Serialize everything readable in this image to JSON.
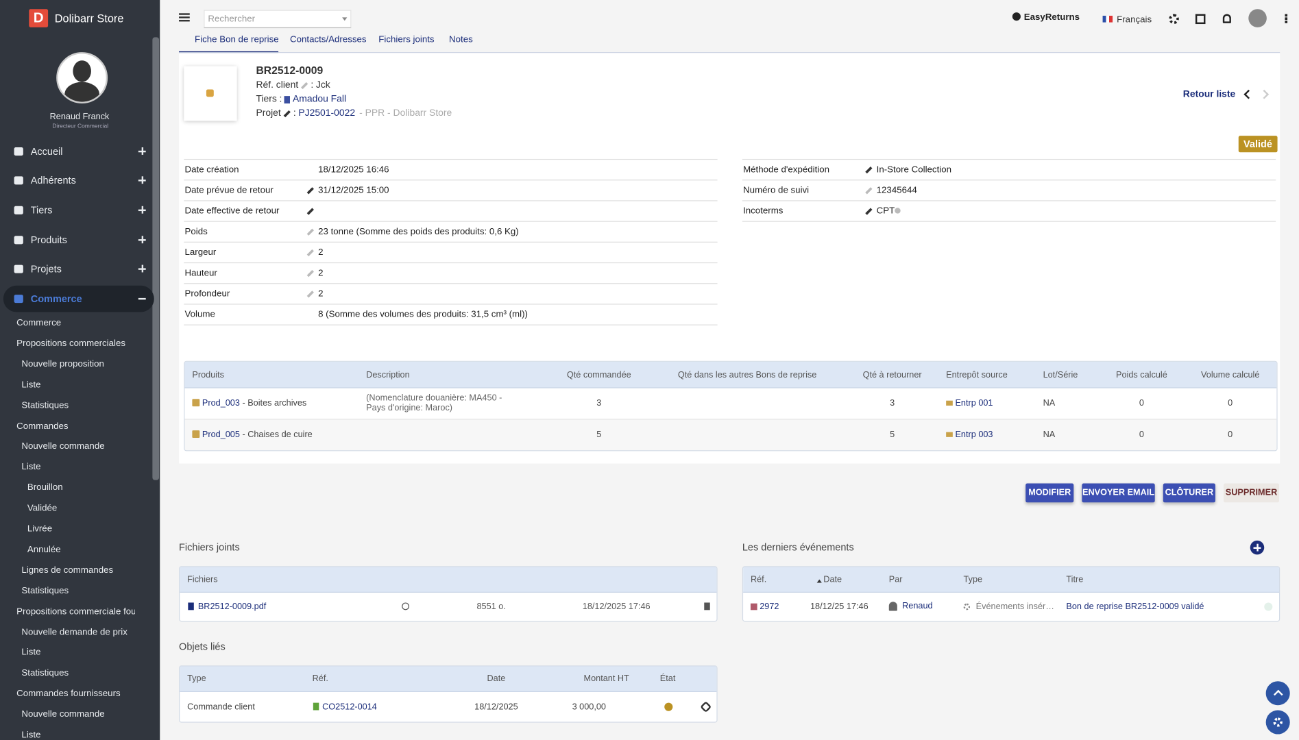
{
  "app": {
    "logo": "D",
    "name": "Dolibarr Store"
  },
  "user": {
    "name": "Renaud Franck",
    "role": "Directeur Commercial"
  },
  "menu": [
    "Accueil",
    "Adhérents",
    "Tiers",
    "Produits",
    "Projets",
    "Commerce"
  ],
  "submenu": [
    {
      "label": "Commerce"
    },
    {
      "label": "Propositions commerciales",
      "items": [
        {
          "label": "Nouvelle proposition"
        },
        {
          "label": "Liste"
        },
        {
          "label": "Statistiques"
        }
      ]
    },
    {
      "label": "Commandes",
      "items": [
        {
          "label": "Nouvelle commande"
        },
        {
          "label": "Liste",
          "items": [
            {
              "label": "Brouillon"
            },
            {
              "label": "Validée"
            },
            {
              "label": "Livrée"
            },
            {
              "label": "Annulée"
            }
          ]
        },
        {
          "label": "Lignes de commandes"
        },
        {
          "label": "Statistiques"
        }
      ]
    },
    {
      "label": "Propositions commerciale fourni...",
      "items": [
        {
          "label": "Nouvelle demande de prix"
        },
        {
          "label": "Liste"
        },
        {
          "label": "Statistiques"
        }
      ]
    },
    {
      "label": "Commandes fournisseurs",
      "items": [
        {
          "label": "Nouvelle commande"
        },
        {
          "label": "Liste"
        }
      ]
    }
  ],
  "topbar": {
    "search": "Rechercher",
    "entity": "EasyReturns",
    "language": "Français"
  },
  "tabs": [
    "Fiche Bon de reprise",
    "Contacts/Adresses",
    "Fichiers joints",
    "Notes"
  ],
  "header": {
    "ref": "BR2512-0009",
    "ref_client": {
      "label": "Réf. client",
      "sep": ":",
      "value": "Jck"
    },
    "thirdparty": {
      "label": "Tiers",
      "sep": ":",
      "value": "Amadou Fall"
    },
    "project": {
      "label": "Projet",
      "sep": ":",
      "value": "PJ2501-0022",
      "extra": "- PPR - Dolibarr Store"
    },
    "back": "Retour liste",
    "status": "Validé"
  },
  "fields_left": [
    [
      "Date création",
      "18/12/2025 16:46"
    ],
    [
      "Date prévue de retour",
      "31/12/2025 15:00"
    ],
    [
      "Date effective de retour"
    ],
    [
      "Poids",
      "23 tonne (Somme des poids des produits: 0,6 Kg)"
    ],
    [
      "Largeur",
      "2"
    ],
    [
      "Hauteur",
      "2"
    ],
    [
      "Profondeur",
      "2"
    ],
    [
      "Volume",
      "8 (Somme des volumes des produits: 31,5 cm³ (ml))"
    ]
  ],
  "fields_right": [
    [
      "Méthode d'expédition",
      "In-Store Collection"
    ],
    [
      "Numéro de suivi",
      "12345644"
    ],
    [
      "Incoterms",
      "CPT"
    ]
  ],
  "products": {
    "headers": [
      "Produits",
      "Description",
      "Qté commandée",
      "Qté dans les autres Bons de reprise",
      "Qté à retourner",
      "Entrepôt source",
      "Lot/Série",
      "Poids calculé",
      "Volume calculé"
    ],
    "rows": [
      {
        "ref": "Prod_003",
        "label": "- Boites archives",
        "cells": [
          "(Nomenclature douanière: MA450 - Pays d'origine: Maroc)",
          "3",
          null,
          "3",
          "Entrp 001",
          "NA",
          "0",
          "0"
        ]
      },
      {
        "ref": "Prod_005",
        "label": "- Chaises de cuire",
        "cells": [
          null,
          "5",
          null,
          "5",
          "Entrp 003",
          "NA",
          "0",
          "0"
        ]
      }
    ]
  },
  "buttons": [
    "MODIFIER",
    "ENVOYER EMAIL",
    "CLÔTURER",
    "SUPPRIMER"
  ],
  "files": {
    "title": "Fichiers joints",
    "header": "Fichiers",
    "rows": [
      [
        "BR2512-0009.pdf",
        "8551 o.",
        "18/12/2025 17:46"
      ]
    ]
  },
  "events": {
    "title": "Les derniers événements",
    "headers": [
      "Réf.",
      "Date",
      "Par",
      "Type",
      "Titre"
    ],
    "rows": [
      [
        "2972",
        "18/12/25 17:46",
        "Renaud",
        "Événements insér…",
        "Bon de reprise BR2512-0009 validé"
      ]
    ]
  },
  "linked": {
    "title": "Objets liés",
    "headers": [
      "Type",
      "Réf.",
      "Date",
      "Montant HT",
      "État"
    ],
    "rows": [
      [
        "Commande client",
        "CO2512-0014",
        "18/12/2025",
        "3 000,00"
      ]
    ]
  }
}
